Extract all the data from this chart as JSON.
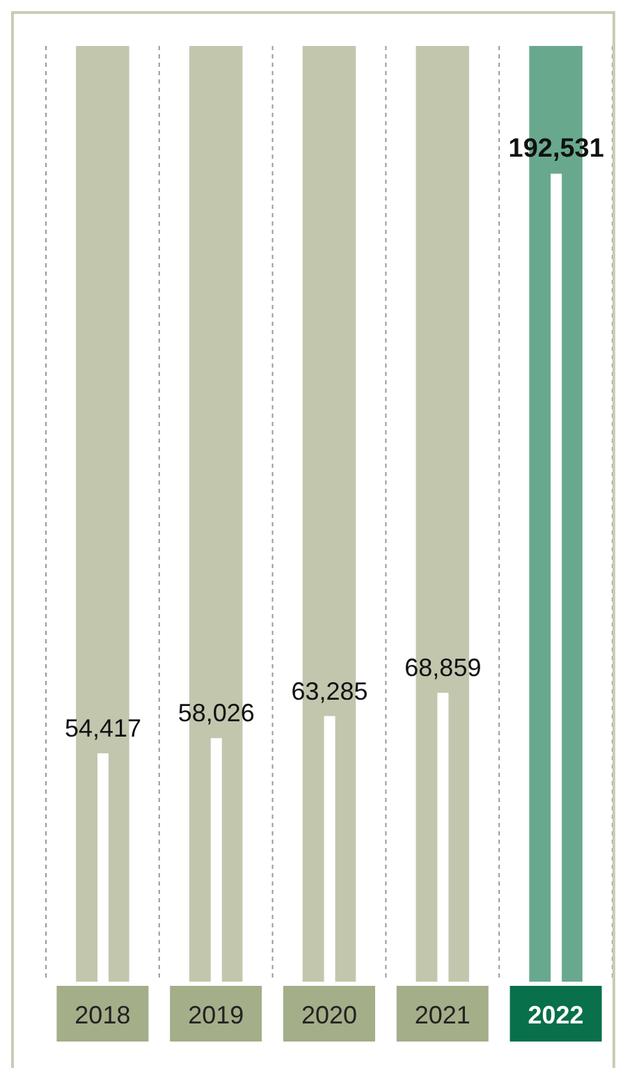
{
  "chart_data": {
    "type": "bar",
    "categories": [
      "2018",
      "2019",
      "2020",
      "2021",
      "2022"
    ],
    "values": [
      54417,
      58026,
      63285,
      68859,
      192531
    ],
    "value_labels": [
      "54,417",
      "58,026",
      "63,285",
      "68,859",
      "192,531"
    ],
    "color": "#ffffff",
    "grid": "x",
    "tick_labels": "x",
    "bands": [
      {
        "axis": "x",
        "from": "2018",
        "to": "2018",
        "color": "#c2c6ad"
      },
      {
        "axis": "x",
        "from": "2019",
        "to": "2019",
        "color": "#c2c6ad"
      },
      {
        "axis": "x",
        "from": "2020",
        "to": "2020",
        "color": "#c2c6ad"
      },
      {
        "axis": "x",
        "from": "2021",
        "to": "2021",
        "color": "#c2c6ad"
      },
      {
        "axis": "x",
        "from": "2022",
        "to": "2022",
        "color": "#68a98e"
      }
    ]
  }
}
